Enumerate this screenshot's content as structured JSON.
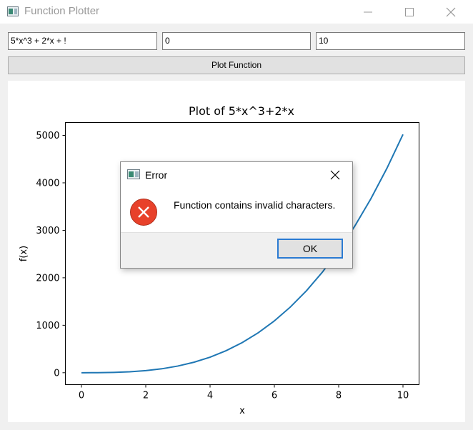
{
  "window": {
    "title": "Function Plotter",
    "icons": {
      "app": "app-window-icon",
      "minimize": "minimize-icon",
      "maximize": "maximize-icon",
      "close": "close-icon"
    }
  },
  "inputs": {
    "function_value": "5*x^3 + 2*x + !",
    "min_value": "0",
    "max_value": "10"
  },
  "plot_button": {
    "label": "Plot Function"
  },
  "chart_data": {
    "type": "line",
    "title": "Plot of 5*x^3+2*x",
    "xlabel": "x",
    "ylabel": "f(x)",
    "xlim": [
      -0.5,
      10.5
    ],
    "ylim": [
      -251,
      5271
    ],
    "x_ticks": [
      0,
      2,
      4,
      6,
      8,
      10
    ],
    "x_tick_labels": [
      "0",
      "2",
      "4",
      "6",
      "8",
      "10"
    ],
    "y_ticks": [
      0,
      1000,
      2000,
      3000,
      4000,
      5000
    ],
    "y_tick_labels": [
      "0",
      "1000",
      "2000",
      "3000",
      "4000",
      "5000"
    ],
    "grid": false,
    "line_color": "#1f77b4",
    "series": [
      {
        "x": [
          0,
          0.5,
          1,
          1.5,
          2,
          2.5,
          3,
          3.5,
          4,
          4.5,
          5,
          5.5,
          6,
          6.5,
          7,
          7.5,
          8,
          8.5,
          9,
          9.5,
          10
        ],
        "y": [
          0,
          1.6,
          7,
          19.9,
          44,
          83.1,
          141,
          221.4,
          328,
          464.6,
          635,
          842.9,
          1092,
          1386.1,
          1729,
          2124.4,
          2576,
          3087.6,
          3663,
          4305.9,
          5020
        ]
      }
    ]
  },
  "dialog": {
    "title": "Error",
    "message": "Function contains invalid characters.",
    "ok_label": "OK",
    "icons": {
      "window": "dialog-window-icon",
      "close": "close-icon",
      "status": "error-icon"
    },
    "status_color": "#e8412a"
  }
}
